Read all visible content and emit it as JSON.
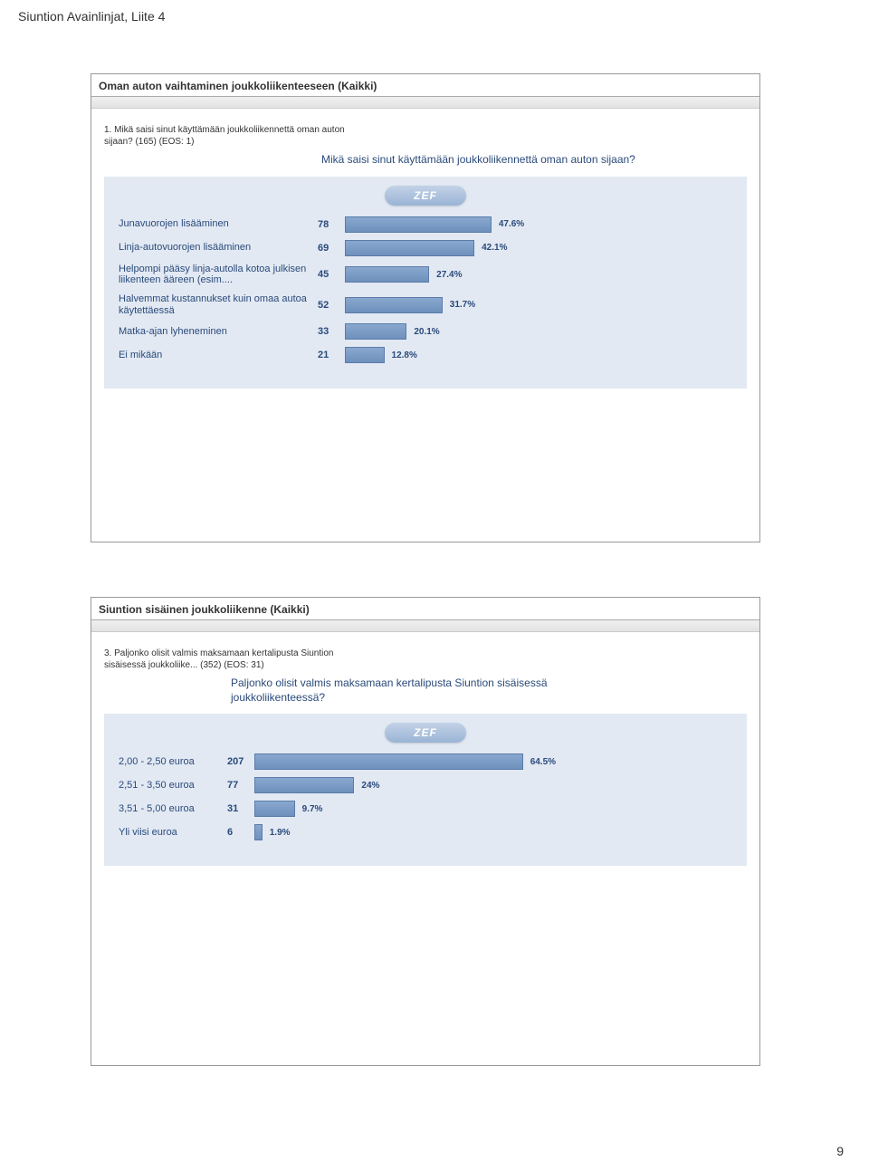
{
  "doc_header": "Siuntion Avainlinjat, Liite 4",
  "page_number": "9",
  "chart1": {
    "panel_title": "Oman auton vaihtaminen joukkoliikenteeseen (Kaikki)",
    "question": "1. Mikä saisi sinut käyttämään joukkoliikennettä oman auton sijaan? (165) (EOS: 1)",
    "chart_title": "Mikä saisi sinut käyttämään joukkoliikennettä oman auton sijaan?",
    "zef": "ZEF",
    "label_width": 220,
    "track_width": 340,
    "bars": [
      {
        "label": "Junavuorojen lisääminen",
        "count": "78",
        "pct": 47.6,
        "pct_label": "47.6%"
      },
      {
        "label": "Linja-autovuorojen lisääminen",
        "count": "69",
        "pct": 42.1,
        "pct_label": "42.1%"
      },
      {
        "label": "Helpompi pääsy linja-autolla kotoa julkisen liikenteen ääreen (esim....",
        "count": "45",
        "pct": 27.4,
        "pct_label": "27.4%"
      },
      {
        "label": "Halvemmat kustannukset kuin omaa autoa käytettäessä",
        "count": "52",
        "pct": 31.7,
        "pct_label": "31.7%"
      },
      {
        "label": "Matka-ajan lyheneminen",
        "count": "33",
        "pct": 20.1,
        "pct_label": "20.1%"
      },
      {
        "label": "Ei mikään",
        "count": "21",
        "pct": 12.8,
        "pct_label": "12.8%"
      }
    ]
  },
  "chart2": {
    "panel_title": "Siuntion sisäinen joukkoliikenne (Kaikki)",
    "question": "3. Paljonko olisit valmis maksamaan kertalipusta Siuntion sisäisessä joukkoliike... (352) (EOS: 31)",
    "chart_title": "Paljonko olisit valmis maksamaan kertalipusta Siuntion sisäisessä joukkoliikenteessä?",
    "zef": "ZEF",
    "label_width": 120,
    "track_width": 460,
    "bars": [
      {
        "label": "2,00 - 2,50 euroa",
        "count": "207",
        "pct": 64.5,
        "pct_label": "64.5%"
      },
      {
        "label": "2,51 - 3,50 euroa",
        "count": "77",
        "pct": 24.0,
        "pct_label": "24%"
      },
      {
        "label": "3,51 - 5,00 euroa",
        "count": "31",
        "pct": 9.7,
        "pct_label": "9.7%"
      },
      {
        "label": "Yli viisi euroa",
        "count": "6",
        "pct": 1.9,
        "pct_label": "1.9%"
      }
    ]
  },
  "colors": {
    "chart_bg": "#e2e9f3",
    "text_blue": "#2a4a7a",
    "bar_grad_top": "#8aa8cf",
    "bar_grad_bot": "#6d90bc",
    "bar_border": "#5b7caa"
  }
}
